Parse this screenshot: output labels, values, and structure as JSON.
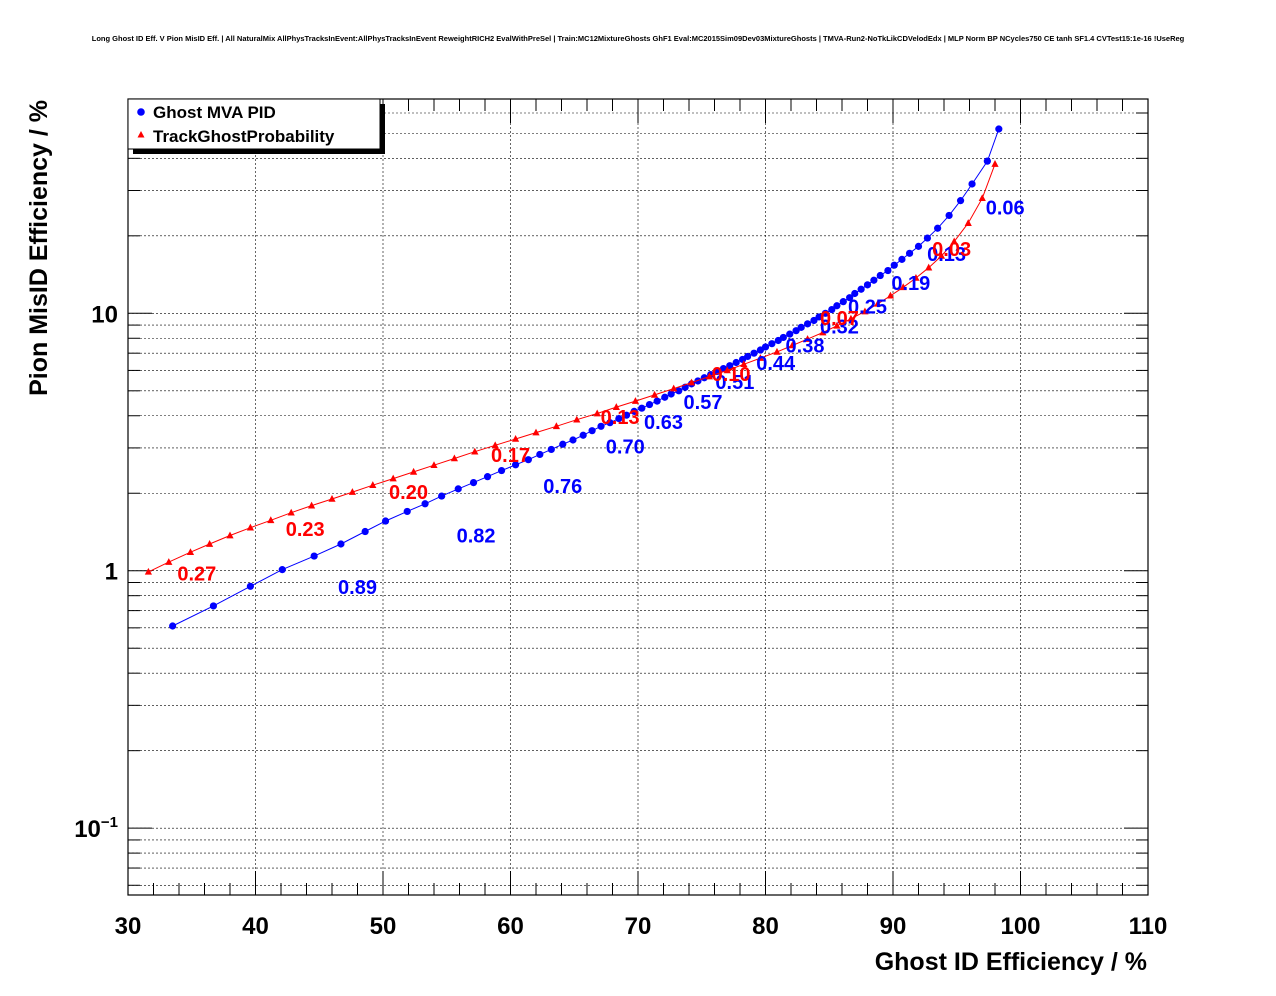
{
  "chart_data": {
    "type": "line",
    "title": "Long Ghost ID Eff. V Pion MisID Eff. | All NaturalMix AllPhysTracksInEvent:AllPhysTracksInEvent ReweightRICH2 EvalWithPreSel | Train:MC12MixtureGhosts GhF1 Eval:MC2015Sim09Dev03MixtureGhosts | TMVA-Run2-NoTkLikCDVelodEdx | MLP Norm BP NCycles750 CE tanh SF1.4 CVTest15:1e-16 !UseReg",
    "xlabel": "Ghost ID Efficiency / %",
    "ylabel": "Pion MisID Efficiency / %",
    "xlim": [
      30,
      110
    ],
    "ylim": [
      0.055,
      68
    ],
    "y_scale": "log",
    "grid": true,
    "legend_position": "top-left",
    "x_ticks": [
      "30",
      "40",
      "50",
      "60",
      "70",
      "80",
      "90",
      "100",
      "110"
    ],
    "y_ticks": [
      {
        "value": 0.1,
        "base": "10",
        "exp": "−1"
      },
      {
        "value": 1,
        "base": "1",
        "exp": ""
      },
      {
        "value": 10,
        "base": "10",
        "exp": ""
      }
    ],
    "series": [
      {
        "name": "Ghost MVA PID",
        "color": "#0000ff",
        "marker": "circle",
        "x": [
          33.5,
          36.7,
          39.6,
          42.1,
          44.6,
          46.7,
          48.6,
          50.2,
          51.9,
          53.3,
          54.6,
          55.9,
          57.1,
          58.2,
          59.3,
          60.4,
          61.4,
          62.3,
          63.2,
          64.1,
          64.9,
          65.7,
          66.4,
          67.1,
          67.8,
          68.5,
          69.1,
          69.7,
          70.3,
          70.9,
          71.5,
          72.1,
          72.6,
          73.2,
          73.7,
          74.2,
          74.7,
          75.2,
          75.7,
          76.2,
          76.7,
          77.2,
          77.7,
          78.2,
          78.6,
          79.1,
          79.6,
          80.0,
          80.5,
          81.0,
          81.4,
          81.9,
          82.4,
          82.8,
          83.3,
          83.8,
          84.2,
          84.7,
          85.2,
          85.6,
          86.1,
          86.6,
          87.0,
          87.5,
          88.0,
          88.5,
          89.0,
          89.6,
          90.1,
          90.7,
          91.3,
          92.0,
          92.7,
          93.5,
          94.4,
          95.3,
          96.2,
          97.4,
          98.3
        ],
        "y": [
          0.61,
          0.73,
          0.87,
          1.01,
          1.14,
          1.27,
          1.42,
          1.56,
          1.7,
          1.82,
          1.95,
          2.08,
          2.2,
          2.32,
          2.45,
          2.58,
          2.7,
          2.83,
          2.96,
          3.1,
          3.22,
          3.36,
          3.5,
          3.64,
          3.76,
          3.9,
          4.02,
          4.16,
          4.28,
          4.42,
          4.56,
          4.72,
          4.86,
          5.0,
          5.16,
          5.32,
          5.46,
          5.62,
          5.78,
          5.94,
          6.1,
          6.26,
          6.44,
          6.62,
          6.8,
          7.0,
          7.2,
          7.4,
          7.62,
          7.84,
          8.06,
          8.3,
          8.56,
          8.82,
          9.1,
          9.38,
          9.68,
          10.0,
          10.34,
          10.7,
          11.1,
          11.5,
          11.94,
          12.4,
          12.9,
          13.44,
          14.02,
          14.66,
          15.38,
          16.2,
          17.1,
          18.2,
          19.6,
          21.4,
          24.0,
          27.4,
          31.8,
          39.0,
          52.0
        ],
        "labels": [
          {
            "text": "0.89",
            "x": 48.0,
            "y": 0.865
          },
          {
            "text": "0.82",
            "x": 57.3,
            "y": 1.37
          },
          {
            "text": "0.76",
            "x": 64.1,
            "y": 2.13
          },
          {
            "text": "0.70",
            "x": 69.0,
            "y": 3.04
          },
          {
            "text": "0.63",
            "x": 72.0,
            "y": 3.78
          },
          {
            "text": "0.57",
            "x": 75.1,
            "y": 4.53
          },
          {
            "text": "0.51",
            "x": 77.6,
            "y": 5.42
          },
          {
            "text": "0.44",
            "x": 80.8,
            "y": 6.42
          },
          {
            "text": "0.38",
            "x": 83.1,
            "y": 7.5
          },
          {
            "text": "0.32",
            "x": 85.8,
            "y": 8.88
          },
          {
            "text": "0.25",
            "x": 88.0,
            "y": 10.65
          },
          {
            "text": "0.19",
            "x": 91.4,
            "y": 13.1
          },
          {
            "text": "0.13",
            "x": 94.2,
            "y": 17.0
          },
          {
            "text": "0.06",
            "x": 98.8,
            "y": 25.8
          }
        ]
      },
      {
        "name": "TrackGhostProbability",
        "color": "#ff0000",
        "marker": "triangle",
        "x": [
          31.6,
          33.2,
          34.9,
          36.4,
          38.0,
          39.6,
          41.2,
          42.8,
          44.4,
          46.0,
          47.6,
          49.2,
          50.8,
          52.4,
          54.0,
          55.6,
          57.2,
          58.8,
          60.4,
          62.0,
          63.6,
          65.2,
          66.8,
          68.3,
          69.8,
          71.3,
          72.8,
          74.2,
          75.6,
          77.0,
          78.3,
          79.6,
          80.9,
          82.1,
          83.3,
          84.5,
          85.6,
          86.7,
          87.8,
          88.8,
          89.8,
          90.8,
          91.8,
          92.8,
          93.8,
          94.8,
          95.9,
          97.0,
          98.0
        ],
        "y": [
          0.99,
          1.08,
          1.18,
          1.27,
          1.37,
          1.47,
          1.57,
          1.68,
          1.79,
          1.9,
          2.02,
          2.15,
          2.28,
          2.42,
          2.57,
          2.73,
          2.9,
          3.07,
          3.25,
          3.44,
          3.64,
          3.86,
          4.08,
          4.32,
          4.56,
          4.82,
          5.1,
          5.38,
          5.68,
          6.0,
          6.34,
          6.7,
          7.08,
          7.5,
          7.94,
          8.42,
          8.94,
          9.52,
          10.16,
          10.88,
          11.7,
          12.62,
          13.72,
          15.04,
          16.7,
          19.0,
          22.4,
          28.0,
          38.0
        ],
        "labels": [
          {
            "text": "0.27",
            "x": 35.4,
            "y": 0.975
          },
          {
            "text": "0.23",
            "x": 43.9,
            "y": 1.455
          },
          {
            "text": "0.20",
            "x": 52.0,
            "y": 2.02
          },
          {
            "text": "0.17",
            "x": 60.0,
            "y": 2.82
          },
          {
            "text": "0.13",
            "x": 68.6,
            "y": 3.95
          },
          {
            "text": "0.10",
            "x": 77.3,
            "y": 5.82
          },
          {
            "text": "0.07",
            "x": 85.8,
            "y": 9.58
          },
          {
            "text": "0.03",
            "x": 94.6,
            "y": 17.8
          }
        ]
      }
    ]
  }
}
